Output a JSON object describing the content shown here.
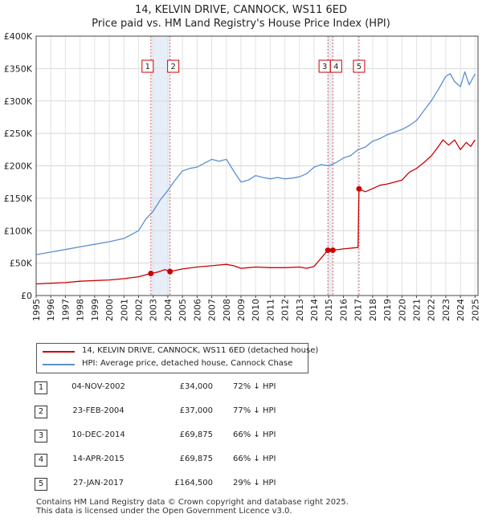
{
  "title_line1": "14, KELVIN DRIVE, CANNOCK, WS11 6ED",
  "title_line2": "Price paid vs. HM Land Registry's House Price Index (HPI)",
  "colors": {
    "property": "#cc0000",
    "hpi": "#5b8fd0",
    "band": "#e8eef8",
    "event_line": "#e06666"
  },
  "chart_data": {
    "type": "line",
    "title": "14, KELVIN DRIVE, CANNOCK, WS11 6ED — Price paid vs. HM Land Registry's House Price Index (HPI)",
    "xlabel": "",
    "ylabel": "",
    "xlim": [
      1995,
      2025.2
    ],
    "ylim": [
      0,
      400000
    ],
    "y_ticks": [
      0,
      50000,
      100000,
      150000,
      200000,
      250000,
      300000,
      350000,
      400000
    ],
    "y_tick_labels": [
      "£0",
      "£50K",
      "£100K",
      "£150K",
      "£200K",
      "£250K",
      "£300K",
      "£350K",
      "£400K"
    ],
    "x_ticks": [
      1995,
      1996,
      1997,
      1998,
      1999,
      2000,
      2001,
      2002,
      2003,
      2004,
      2005,
      2006,
      2007,
      2008,
      2009,
      2010,
      2011,
      2012,
      2013,
      2014,
      2015,
      2016,
      2017,
      2018,
      2019,
      2020,
      2021,
      2022,
      2023,
      2024,
      2025
    ],
    "x_tick_labels": [
      "1995",
      "1996",
      "1997",
      "1998",
      "1999",
      "2000",
      "2001",
      "2002",
      "2003",
      "2004",
      "2005",
      "2006",
      "2007",
      "2008",
      "2009",
      "2010",
      "2011",
      "2012",
      "2013",
      "2014",
      "2015",
      "2016",
      "2017",
      "2018",
      "2019",
      "2020",
      "2021",
      "2022",
      "2023",
      "2024",
      "2025"
    ],
    "grid": true,
    "series": [
      {
        "name": "14, KELVIN DRIVE, CANNOCK, WS11 6ED (detached house)",
        "color": "#cc0000",
        "x": [
          1995.0,
          1996.0,
          1997.0,
          1998.0,
          1999.0,
          2000.0,
          2001.0,
          2002.0,
          2002.84,
          2003.3,
          2003.8,
          2004.15,
          2005.0,
          2006.0,
          2007.0,
          2007.5,
          2008.0,
          2008.5,
          2009.0,
          2009.5,
          2010.0,
          2011.0,
          2012.0,
          2013.0,
          2013.5,
          2014.0,
          2014.94,
          2015.28,
          2016.0,
          2017.0,
          2017.07,
          2017.5,
          2018.0,
          2018.5,
          2019.0,
          2019.5,
          2020.0,
          2020.5,
          2021.0,
          2021.5,
          2022.0,
          2022.5,
          2022.8,
          2023.2,
          2023.6,
          2024.0,
          2024.4,
          2024.7,
          2025.0
        ],
        "y": [
          18000,
          19000,
          20000,
          22000,
          23000,
          24000,
          26000,
          29000,
          34000,
          36000,
          40000,
          37000,
          41000,
          44000,
          46000,
          47000,
          48000,
          46000,
          42000,
          43000,
          44000,
          43000,
          43000,
          44000,
          42000,
          45000,
          69875,
          69875,
          72000,
          74000,
          164500,
          160000,
          165000,
          170000,
          172000,
          175000,
          178000,
          190000,
          196000,
          205000,
          215000,
          230000,
          240000,
          232000,
          240000,
          225000,
          236000,
          230000,
          240000
        ]
      },
      {
        "name": "HPI: Average price, detached house, Cannock Chase",
        "color": "#5b8fd0",
        "x": [
          1995.0,
          1996.0,
          1997.0,
          1998.0,
          1999.0,
          2000.0,
          2001.0,
          2002.0,
          2002.5,
          2003.0,
          2003.5,
          2004.0,
          2004.5,
          2005.0,
          2005.5,
          2006.0,
          2006.5,
          2007.0,
          2007.5,
          2008.0,
          2008.5,
          2009.0,
          2009.5,
          2010.0,
          2010.5,
          2011.0,
          2011.5,
          2012.0,
          2012.5,
          2013.0,
          2013.5,
          2014.0,
          2014.5,
          2015.0,
          2015.5,
          2016.0,
          2016.5,
          2017.0,
          2017.5,
          2018.0,
          2018.5,
          2019.0,
          2019.5,
          2020.0,
          2020.5,
          2021.0,
          2021.5,
          2022.0,
          2022.5,
          2022.8,
          2023.0,
          2023.3,
          2023.6,
          2024.0,
          2024.3,
          2024.6,
          2025.0
        ],
        "y": [
          63000,
          67000,
          71000,
          75000,
          79000,
          83000,
          88000,
          100000,
          118000,
          130000,
          148000,
          162000,
          178000,
          192000,
          196000,
          198000,
          204000,
          210000,
          207000,
          210000,
          192000,
          175000,
          178000,
          185000,
          182000,
          180000,
          182000,
          180000,
          181000,
          183000,
          188000,
          198000,
          202000,
          200000,
          205000,
          212000,
          216000,
          225000,
          229000,
          238000,
          242000,
          248000,
          252000,
          256000,
          262000,
          270000,
          285000,
          300000,
          318000,
          330000,
          338000,
          342000,
          330000,
          322000,
          345000,
          325000,
          342000
        ]
      }
    ],
    "events": [
      {
        "id": "1",
        "date": "04-NOV-2002",
        "x": 2002.84,
        "price": 34000
      },
      {
        "id": "2",
        "date": "23-FEB-2004",
        "x": 2004.15,
        "price": 37000
      },
      {
        "id": "3",
        "date": "10-DEC-2014",
        "x": 2014.94,
        "price": 69875
      },
      {
        "id": "4",
        "date": "14-APR-2015",
        "x": 2015.28,
        "price": 69875
      },
      {
        "id": "5",
        "date": "27-JAN-2017",
        "x": 2017.07,
        "price": 164500
      }
    ]
  },
  "legend": {
    "property_label": "14, KELVIN DRIVE, CANNOCK, WS11 6ED (detached house)",
    "hpi_label": "HPI: Average price, detached house, Cannock Chase"
  },
  "events_table": [
    {
      "id": "1",
      "date": "04-NOV-2002",
      "price": "£34,000",
      "hpi": "72% ↓ HPI"
    },
    {
      "id": "2",
      "date": "23-FEB-2004",
      "price": "£37,000",
      "hpi": "77% ↓ HPI"
    },
    {
      "id": "3",
      "date": "10-DEC-2014",
      "price": "£69,875",
      "hpi": "66% ↓ HPI"
    },
    {
      "id": "4",
      "date": "14-APR-2015",
      "price": "£69,875",
      "hpi": "66% ↓ HPI"
    },
    {
      "id": "5",
      "date": "27-JAN-2017",
      "price": "£164,500",
      "hpi": "29% ↓ HPI"
    }
  ],
  "footer": {
    "line1": "Contains HM Land Registry data © Crown copyright and database right 2025.",
    "line2": "This data is licensed under the Open Government Licence v3.0."
  }
}
